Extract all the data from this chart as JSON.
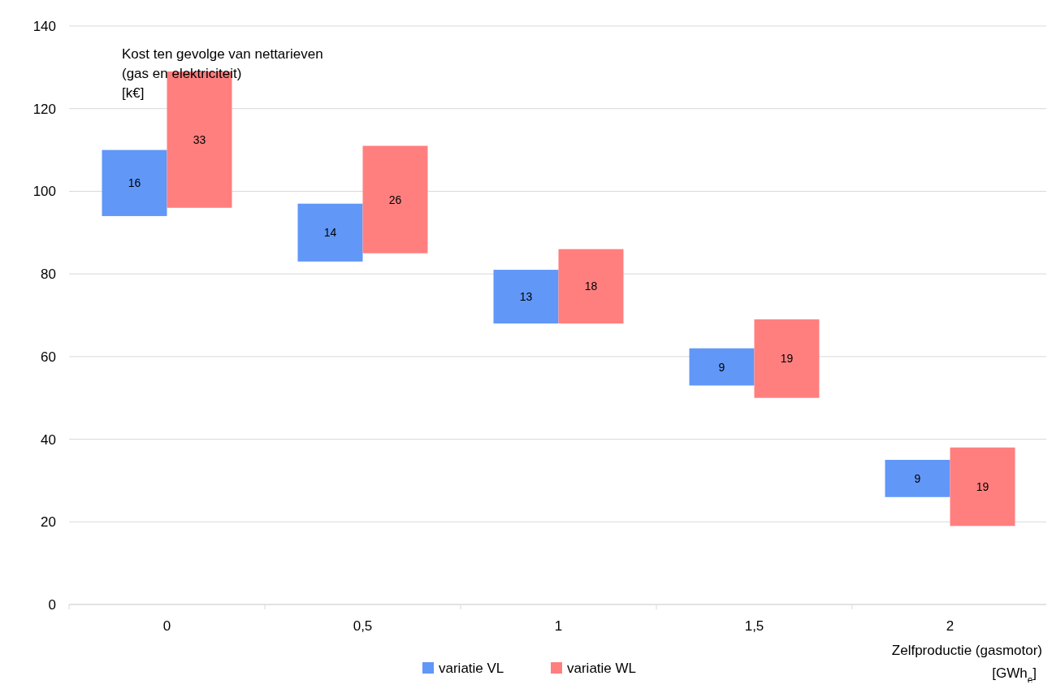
{
  "chart_data": {
    "type": "bar",
    "ylabel": "Kost ten gevolge van nettarieven\n(gas en elektriciteit)\n[k€]",
    "xlabel": "Zelfproductie (gasmotor)\n[GWh$_{e}$]",
    "categories": [
      "0",
      "0,5",
      "1",
      "1,5",
      "2"
    ],
    "series": [
      {
        "name": "variatie VL",
        "color": "#6197f7",
        "values": [
          16,
          14,
          13,
          9,
          9
        ],
        "base": [
          94,
          83,
          68,
          53,
          26
        ]
      },
      {
        "name": "variatie WL",
        "color": "#ff7f7f",
        "values": [
          33,
          26,
          18,
          19,
          19
        ],
        "base": [
          96,
          85,
          68,
          50,
          19
        ]
      }
    ],
    "ylim": [
      0,
      140
    ],
    "yticks": [
      0,
      20,
      40,
      60,
      80,
      100,
      120,
      140
    ],
    "grid": "y",
    "legend": "bottom",
    "data_labels": true
  }
}
